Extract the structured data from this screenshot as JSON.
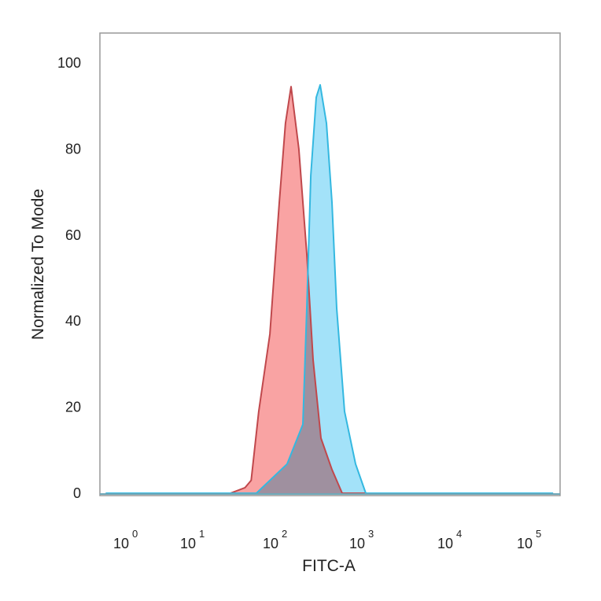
{
  "chart_data": {
    "type": "area",
    "title": "",
    "xlabel": "FITC-A",
    "ylabel": "Normalized To Mode",
    "xscale": "log",
    "xlim": [
      0.5,
      200000
    ],
    "ylim": [
      0,
      100
    ],
    "x_ticks": [
      {
        "base": "10",
        "exp": "0"
      },
      {
        "base": "10",
        "exp": "1"
      },
      {
        "base": "10",
        "exp": "2"
      },
      {
        "base": "10",
        "exp": "3"
      },
      {
        "base": "10",
        "exp": "4"
      },
      {
        "base": "10",
        "exp": "5"
      }
    ],
    "y_ticks": [
      "0",
      "20",
      "40",
      "60",
      "80",
      "100"
    ],
    "grid": false,
    "legend": "none",
    "series": [
      {
        "color_fill": "#f9a3a3",
        "color_line": "#c0484c",
        "x": [
          0.5,
          28.5,
          43,
          51,
          63,
          86,
          111,
          131,
          152,
          187,
          231,
          273,
          337,
          451,
          593,
          200000
        ],
        "y": [
          0,
          0,
          1.3,
          3,
          19,
          37,
          67.5,
          86,
          94.5,
          80,
          55.6,
          31,
          12.8,
          5.5,
          0,
          0
        ]
      },
      {
        "color_fill": "#a3e2f9",
        "color_line": "#34b8e0",
        "x": [
          0.5,
          59,
          137,
          208,
          231,
          257,
          297,
          330,
          390,
          451,
          512,
          631,
          845,
          1109,
          200000
        ],
        "y": [
          0,
          0,
          6.8,
          16,
          43,
          73.9,
          92,
          94.9,
          86,
          67.6,
          43,
          19,
          6.8,
          0,
          0
        ]
      }
    ]
  }
}
